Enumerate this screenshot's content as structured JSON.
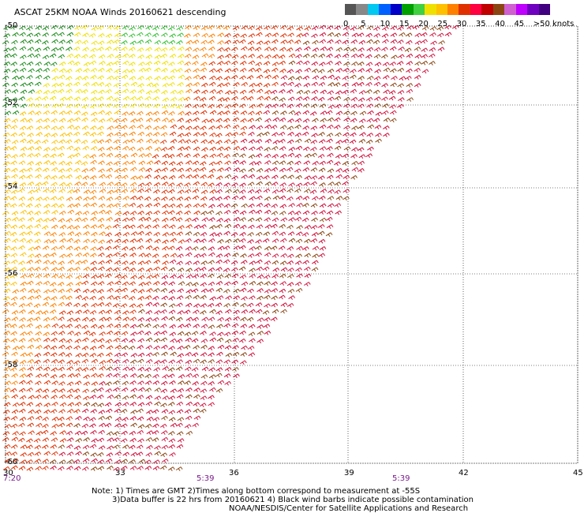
{
  "title": "ASCAT 25KM NOAA Winds 20160621 descending",
  "colorbar": {
    "labels": [
      "0",
      "5",
      "10",
      "15",
      "20",
      "25",
      "30",
      "35",
      "40",
      "45",
      ">50 knots"
    ],
    "colors": [
      "#555555",
      "#888888",
      "#00c8f0",
      "#0060ff",
      "#0000c8",
      "#00a000",
      "#40d040",
      "#f0e000",
      "#ffc000",
      "#ff8000",
      "#e03000",
      "#ff0040",
      "#c00000",
      "#8b4513",
      "#d060d0",
      "#c000ff",
      "#7000c0",
      "#400080"
    ]
  },
  "axes": {
    "y_ticks": [
      "-50",
      "-52",
      "-54",
      "-56",
      "-58",
      "-60"
    ],
    "x_ticks": [
      "30",
      "33",
      "36",
      "39",
      "42",
      "45"
    ],
    "times": [
      "7:20",
      "5:39",
      "5:39"
    ]
  },
  "notes": [
    "Note: 1) Times are GMT 2)Times along bottom correspond to measurement at -55S",
    "3)Data buffer is 22 hrs from 20160621 4) Black wind barbs indicate possible contamination",
    "NOAA/NESDIS/Center for Satellite Applications and Research"
  ]
}
